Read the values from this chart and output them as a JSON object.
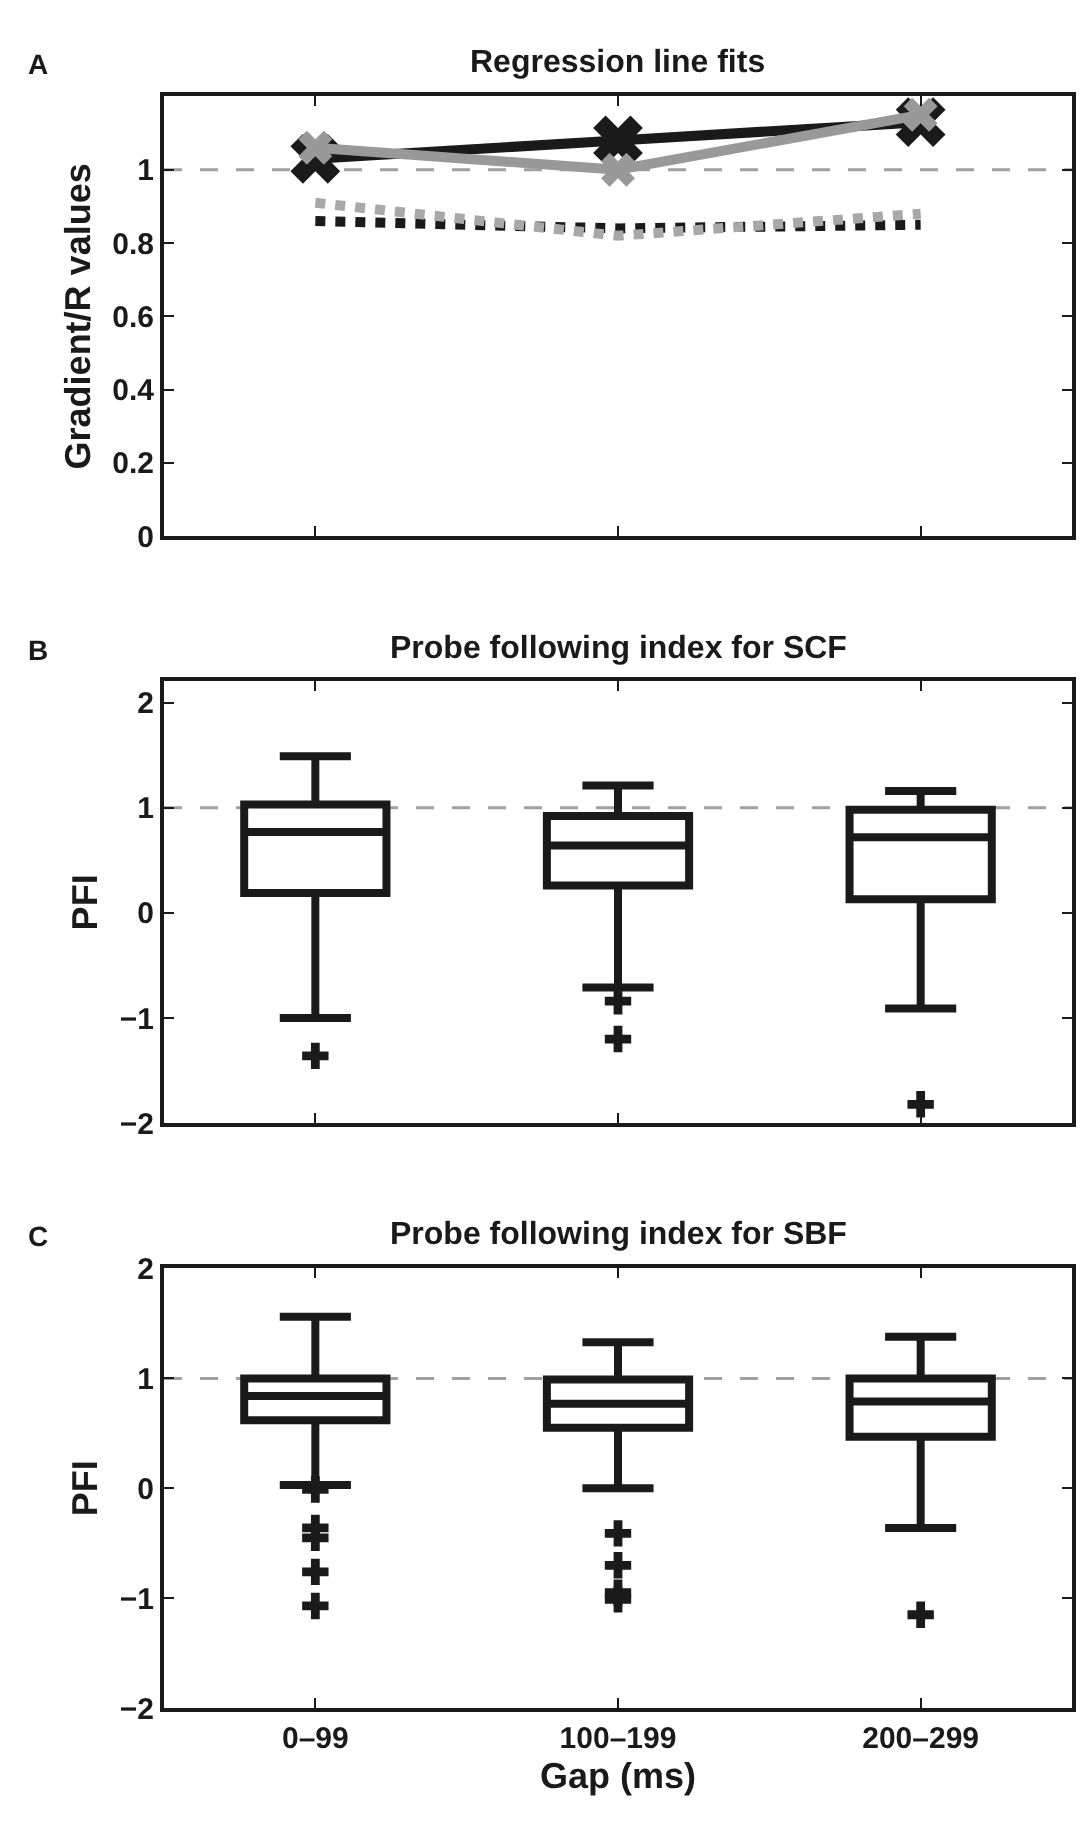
{
  "chart_data": [
    {
      "type": "line",
      "title": "Regression line fits",
      "ylabel": "Gradient/R values",
      "annotations": [
        "A"
      ],
      "categories": [
        null,
        null,
        null
      ],
      "tick_labels": "y",
      "grid": false,
      "ylim": [
        0,
        1.2
      ],
      "yticks": [
        0,
        0.2,
        0.4,
        0.6,
        0.8,
        1
      ],
      "ref_lines": [
        {
          "axis": "y",
          "value": 1,
          "color": "#a0a0a0",
          "line_style": "dashed"
        }
      ],
      "series": [
        {
          "color": "#1a1a1a",
          "values": [
            1.03,
            1.08,
            1.13
          ],
          "marker": "cross",
          "line_style": "solid"
        },
        {
          "color": "#999999",
          "values": [
            1.06,
            1.0,
            1.15
          ],
          "marker": "cross",
          "line_style": "solid"
        },
        {
          "color": "#1a1a1a",
          "values": [
            0.86,
            0.84,
            0.85
          ],
          "marker": "none",
          "line_style": "dotted"
        },
        {
          "color": "#a8a8a8",
          "values": [
            0.91,
            0.82,
            0.88
          ],
          "marker": "none",
          "line_style": "dotted"
        }
      ]
    },
    {
      "type": "box",
      "title": "Probe following index for SCF",
      "ylabel": "PFI",
      "annotations": [
        "B"
      ],
      "categories": [
        null,
        null,
        null
      ],
      "tick_labels": "y",
      "grid": false,
      "color": "#1a1a1a",
      "ylim": [
        -2,
        2.2
      ],
      "yticks": [
        -2,
        -1,
        0,
        1,
        2
      ],
      "ref_lines": [
        {
          "axis": "y",
          "value": 1,
          "color": "#a0a0a0",
          "line_style": "dashed"
        }
      ],
      "boxes": [
        {
          "low": -1.0,
          "q1": 0.19,
          "median": 0.77,
          "q3": 1.03,
          "high": 1.49,
          "outliers": [
            -1.36
          ]
        },
        {
          "low": -0.71,
          "q1": 0.26,
          "median": 0.64,
          "q3": 0.92,
          "high": 1.21,
          "outliers": [
            -0.84,
            -1.2
          ]
        },
        {
          "low": -0.91,
          "q1": 0.13,
          "median": 0.72,
          "q3": 0.98,
          "high": 1.16,
          "outliers": [
            -1.82
          ]
        }
      ]
    },
    {
      "type": "box",
      "title": "Probe following index for SBF",
      "ylabel": "PFI",
      "xlabel": "Gap (ms)",
      "annotations": [
        "C"
      ],
      "categories": [
        "0–99",
        "100–199",
        "200–299"
      ],
      "grid": false,
      "color": "#1a1a1a",
      "ylim": [
        -2,
        2
      ],
      "yticks": [
        -2,
        -1,
        0,
        1,
        2
      ],
      "ref_lines": [
        {
          "axis": "y",
          "value": 1,
          "color": "#a0a0a0",
          "line_style": "dashed"
        }
      ],
      "boxes": [
        {
          "low": 0.03,
          "q1": 0.62,
          "median": 0.84,
          "q3": 1.0,
          "high": 1.56,
          "outliers": [
            -0.01,
            -0.36,
            -0.45,
            -0.76,
            -1.07
          ]
        },
        {
          "low": 0.0,
          "q1": 0.55,
          "median": 0.77,
          "q3": 0.99,
          "high": 1.33,
          "outliers": [
            -0.41,
            -0.7,
            -0.95,
            -1.01
          ]
        },
        {
          "low": -0.36,
          "q1": 0.47,
          "median": 0.79,
          "q3": 1.0,
          "high": 1.38,
          "outliers": [
            -1.15
          ]
        }
      ]
    }
  ]
}
